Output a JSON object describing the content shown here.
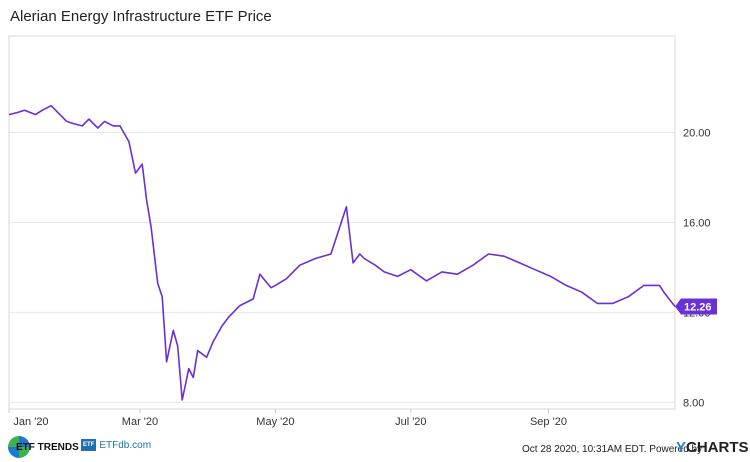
{
  "title": "Alerian Energy Infrastructure ETF Price",
  "chart_data": {
    "type": "line",
    "title": "Alerian Energy Infrastructure ETF Price",
    "x": [
      "2020-01-02",
      "2020-01-06",
      "2020-01-09",
      "2020-01-14",
      "2020-01-17",
      "2020-01-21",
      "2020-01-24",
      "2020-01-28",
      "2020-01-31",
      "2020-02-04",
      "2020-02-07",
      "2020-02-11",
      "2020-02-14",
      "2020-02-18",
      "2020-02-21",
      "2020-02-25",
      "2020-02-28",
      "2020-03-02",
      "2020-03-04",
      "2020-03-06",
      "2020-03-09",
      "2020-03-11",
      "2020-03-13",
      "2020-03-16",
      "2020-03-18",
      "2020-03-20",
      "2020-03-23",
      "2020-03-25",
      "2020-03-27",
      "2020-03-31",
      "2020-04-03",
      "2020-04-07",
      "2020-04-10",
      "2020-04-15",
      "2020-04-21",
      "2020-04-24",
      "2020-04-29",
      "2020-05-01",
      "2020-05-06",
      "2020-05-12",
      "2020-05-19",
      "2020-05-26",
      "2020-06-02",
      "2020-06-05",
      "2020-06-08",
      "2020-06-10",
      "2020-06-15",
      "2020-06-19",
      "2020-06-25",
      "2020-07-01",
      "2020-07-08",
      "2020-07-15",
      "2020-07-22",
      "2020-07-29",
      "2020-08-05",
      "2020-08-12",
      "2020-08-19",
      "2020-08-26",
      "2020-09-02",
      "2020-09-09",
      "2020-09-16",
      "2020-09-23",
      "2020-09-30",
      "2020-10-07",
      "2020-10-14",
      "2020-10-21",
      "2020-10-23",
      "2020-10-28"
    ],
    "series": [
      {
        "values": [
          20.8,
          20.9,
          21.0,
          20.8,
          21.0,
          21.2,
          20.9,
          20.5,
          20.4,
          20.3,
          20.6,
          20.2,
          20.5,
          20.3,
          20.3,
          19.6,
          18.2,
          18.6,
          17.0,
          15.8,
          13.3,
          12.7,
          9.8,
          11.2,
          10.5,
          8.1,
          9.5,
          9.1,
          10.3,
          10.0,
          10.7,
          11.4,
          11.8,
          12.3,
          12.6,
          13.7,
          13.1,
          13.2,
          13.5,
          14.1,
          14.4,
          14.6,
          16.7,
          14.2,
          14.6,
          14.4,
          14.1,
          13.8,
          13.6,
          13.9,
          13.4,
          13.8,
          13.7,
          14.1,
          14.6,
          14.5,
          14.2,
          13.9,
          13.6,
          13.2,
          12.9,
          12.4,
          12.4,
          12.7,
          13.2,
          13.2,
          12.9,
          12.26
        ]
      }
    ],
    "last_value_label": "12.26",
    "ylim": [
      7.7,
      24.3
    ],
    "y_ticks": [
      "8.00",
      "12.00",
      "16.00",
      "20.00"
    ],
    "x_ticks": [
      "Jan '20",
      "Mar '20",
      "May '20",
      "Jul '20",
      "Sep '20"
    ],
    "line_color": "#6a2fd6",
    "grid": true
  },
  "footer": {
    "logo1_text": "ETF TRENDS",
    "logo2_box": "ETF",
    "logo2_text": "ETFdb.com",
    "timestamp": "Oct 28 2020, 10:31AM EDT. Powered by",
    "brand_y": "Y",
    "brand_rest": "CHARTS"
  }
}
